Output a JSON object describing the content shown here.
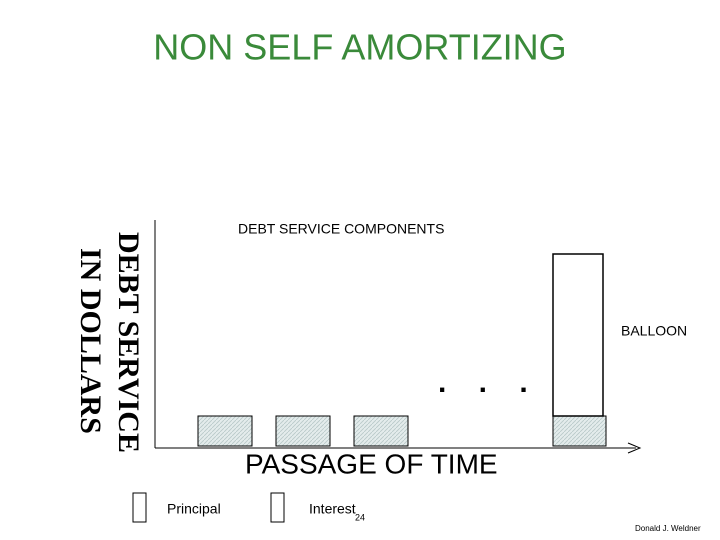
{
  "header": {
    "title": "NON SELF AMORTIZING"
  },
  "y_axis": {
    "lines": [
      "DEBT SERVICE",
      "IN DOLLARS"
    ]
  },
  "labels": {
    "components": "DEBT SERVICE COMPONENTS",
    "balloon": "BALLOON",
    "ellipsis": ". . .",
    "x_axis": "PASSAGE OF TIME"
  },
  "legend": {
    "items": [
      "Principal",
      "Interest"
    ]
  },
  "footer": {
    "page_number": "24",
    "author": "Donald J. Weldner"
  }
}
